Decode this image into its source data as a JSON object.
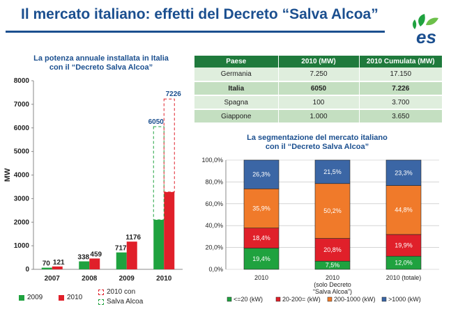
{
  "header": {
    "title": "Il mercato italiano: effetti del Decreto “Salva Alcoa”",
    "logo_text": "es"
  },
  "colors": {
    "accent": "#1b4f8f",
    "green": "#1fa23f",
    "red": "#e0202a",
    "stack_blue": "#3b66a5",
    "stack_orange": "#f07a2a",
    "stack_red": "#e0202a",
    "stack_green": "#1fa23f"
  },
  "bar_chart_title_1": "La potenza annuale installata in Italia",
  "bar_chart_title_2": "con il “Decreto Salva Alcoa”",
  "stack_chart_title_1": "La segmentazione del mercato italiano",
  "stack_chart_title_2": "con il “Decreto Salva Alcoa”",
  "bar_legend": {
    "a": "2009",
    "b": "2010",
    "c1": "2010 con",
    "c2": "Salva Alcoa"
  },
  "stack_legend": [
    "<=20 (kW)",
    "20-200= (kW)",
    "200-1000 (kW)",
    ">1000 (kW)"
  ],
  "table": {
    "headers": [
      "Paese",
      "2010 (MW)",
      "2010 Cumulata (MW)"
    ],
    "rows": [
      [
        "Germania",
        "7.250",
        "17.150"
      ],
      [
        "Italia",
        "6050",
        "7.226"
      ],
      [
        "Spagna",
        "100",
        "3.700"
      ],
      [
        "Giappone",
        "1.000",
        "3.650"
      ]
    ]
  },
  "chart_data": [
    {
      "type": "bar",
      "title": "La potenza annuale installata in Italia con il “Decreto Salva Alcoa”",
      "ylabel": "MW",
      "ylim": [
        0,
        8000
      ],
      "yticks": [
        "0",
        "1000",
        "2000",
        "3000",
        "4000",
        "5000",
        "6000",
        "7000",
        "8000"
      ],
      "categories": [
        "2007",
        "2008",
        "2009",
        "2010"
      ],
      "series": [
        {
          "name": "2009",
          "values": [
            70,
            338,
            717,
            2100
          ],
          "labels": [
            "70",
            "338",
            "717",
            ""
          ]
        },
        {
          "name": "2010",
          "values": [
            121,
            459,
            1176,
            3280
          ],
          "labels": [
            "121",
            "459",
            "1176",
            ""
          ]
        },
        {
          "name": "2010 con Salva Alcoa",
          "values": [
            null,
            null,
            null,
            6050
          ],
          "labels": [
            "",
            "",
            "",
            "6050"
          ]
        },
        {
          "name": "2010 con Salva Alcoa",
          "values": [
            null,
            null,
            null,
            7226
          ],
          "labels": [
            "",
            "",
            "",
            "7226"
          ]
        }
      ],
      "grid": false
    },
    {
      "type": "bar",
      "stacked": true,
      "title": "La segmentazione del mercato italiano con il “Decreto Salva Alcoa”",
      "ylim": [
        0,
        100
      ],
      "yticks": [
        "0,0%",
        "20,0%",
        "40,0%",
        "60,0%",
        "80,0%",
        "100,0%"
      ],
      "categories": [
        "2010",
        "2010 (solo Decreto “Salva Alcoa”)",
        "2010 (totale)"
      ],
      "series": [
        {
          "name": "<=20 (kW)",
          "values": [
            19.4,
            7.5,
            12.0
          ],
          "labels": [
            "19,4%",
            "7,5%",
            "12,0%"
          ]
        },
        {
          "name": "20-200= (kW)",
          "values": [
            18.4,
            20.8,
            19.9
          ],
          "labels": [
            "18,4%",
            "20,8%",
            "19,9%"
          ]
        },
        {
          "name": "200-1000 (kW)",
          "values": [
            35.9,
            50.2,
            44.8
          ],
          "labels": [
            "35,9%",
            "50,2%",
            "44,8%"
          ]
        },
        {
          "name": ">1000 (kW)",
          "values": [
            26.3,
            21.5,
            23.3
          ],
          "labels": [
            "26,3%",
            "21,5%",
            "23,3%"
          ]
        }
      ],
      "grid": true,
      "legend": "bottom"
    }
  ]
}
